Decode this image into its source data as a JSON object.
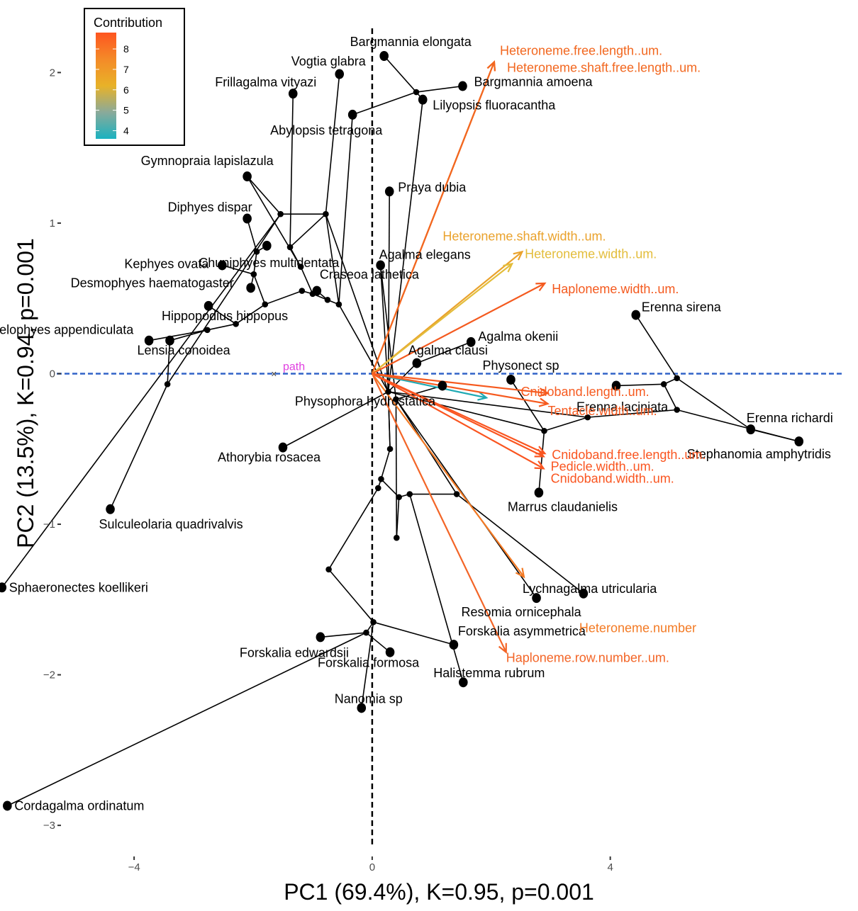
{
  "chart_data": {
    "type": "scatter",
    "subtype": "phylomorphospace biplot",
    "xlabel": "PC1 (69.4%), K=0.95, p=0.001",
    "ylabel": "PC2  (13.5%), K=0.94, p=0.001",
    "xlim": [
      -5.3,
      7.9
    ],
    "ylim": [
      -3.15,
      2.35
    ],
    "xticks": [
      -4,
      0,
      4
    ],
    "yticks": [
      -3,
      -2,
      -1,
      0,
      1,
      2
    ],
    "grid": false,
    "reference_lines": {
      "x": 0,
      "y": 0
    },
    "legend": {
      "title": "Contribution",
      "placement": "top-left",
      "ticks": [
        4,
        5,
        6,
        7,
        8
      ],
      "range": [
        3.6,
        8.8
      ],
      "gradient": [
        "#1ab2c0",
        "#8aaa9a",
        "#e8b228",
        "#f48a28",
        "#fe5520"
      ]
    },
    "baseline": {
      "label": "path",
      "y": 0,
      "color": "#3264c8",
      "label_color": "#e040e0"
    },
    "species": [
      {
        "name": "Bargmannia elongata",
        "x": 0.2,
        "y": 2.11
      },
      {
        "name": "Vogtia glabra",
        "x": -0.55,
        "y": 1.99
      },
      {
        "name": "Frillagalma vityazi",
        "x": -1.33,
        "y": 1.86
      },
      {
        "name": "Bargmannia amoena",
        "x": 1.52,
        "y": 1.91
      },
      {
        "name": "Lilyopsis fluoracantha",
        "x": 0.85,
        "y": 1.82
      },
      {
        "name": "Abylopsis tetragona",
        "x": -0.33,
        "y": 1.72
      },
      {
        "name": "Gymnopraia lapislazula",
        "x": -2.1,
        "y": 1.31
      },
      {
        "name": "Praya dubia",
        "x": 0.29,
        "y": 1.21
      },
      {
        "name": "Diphyes dispar",
        "x": -2.1,
        "y": 1.03
      },
      {
        "name": "Chuniphyes multidentata",
        "x": -1.77,
        "y": 0.85
      },
      {
        "name": "Kephyes ovata",
        "x": -2.52,
        "y": 0.72
      },
      {
        "name": "Agalma elegans",
        "x": 0.14,
        "y": 0.72
      },
      {
        "name": "Desmophyes haematogaster",
        "x": -2.04,
        "y": 0.57
      },
      {
        "name": "Craseoa lathetica",
        "x": -0.93,
        "y": 0.55
      },
      {
        "name": "Erenna sirena",
        "x": 4.43,
        "y": 0.39
      },
      {
        "name": "Hippopodius hippopus",
        "x": -2.75,
        "y": 0.45
      },
      {
        "name": "Agalma okenii",
        "x": 1.66,
        "y": 0.21
      },
      {
        "name": "Chelophyes appendiculata",
        "x": -3.75,
        "y": 0.22
      },
      {
        "name": "Lensia conoidea",
        "x": -3.4,
        "y": 0.22
      },
      {
        "name": "Agalma clausi",
        "x": 0.75,
        "y": 0.07
      },
      {
        "name": "Physonect sp",
        "x": 2.33,
        "y": -0.04
      },
      {
        "name": "Physophora hydrostatica",
        "x": 1.18,
        "y": -0.08
      },
      {
        "name": "Erenna laciniata",
        "x": 4.1,
        "y": -0.08
      },
      {
        "name": "Erenna richardi",
        "x": 6.36,
        "y": -0.37
      },
      {
        "name": "Stephanomia amphytridis",
        "x": 7.17,
        "y": -0.45
      },
      {
        "name": "Athorybia rosacea",
        "x": -1.5,
        "y": -0.49
      },
      {
        "name": "Marrus claudanielis",
        "x": 2.8,
        "y": -0.79
      },
      {
        "name": "Sulculeolaria quadrivalvis",
        "x": -4.4,
        "y": -0.9
      },
      {
        "name": "Sphaeronectes koellikeri",
        "x": -6.22,
        "y": -1.42
      },
      {
        "name": "Lychnagalma utricularia",
        "x": 3.55,
        "y": -1.46
      },
      {
        "name": "Resomia ornicephala",
        "x": 2.76,
        "y": -1.49
      },
      {
        "name": "Forskalia edwardsii",
        "x": -0.87,
        "y": -1.75
      },
      {
        "name": "Forskalia asymmetrica",
        "x": 1.37,
        "y": -1.8
      },
      {
        "name": "Forskalia formosa",
        "x": 0.3,
        "y": -1.85
      },
      {
        "name": "Halistemma rubrum",
        "x": 1.53,
        "y": -2.05
      },
      {
        "name": "Nanomia sp",
        "x": -0.18,
        "y": -2.22
      },
      {
        "name": "Cordagalma ordinatum",
        "x": -6.13,
        "y": -2.87
      }
    ],
    "nodes": [
      {
        "id": "n1",
        "x": -3.44,
        "y": -0.07
      },
      {
        "id": "n2",
        "x": -2.77,
        "y": 0.29
      },
      {
        "id": "n3",
        "x": -2.29,
        "y": 0.33
      },
      {
        "id": "n4",
        "x": -1.8,
        "y": 0.46
      },
      {
        "id": "n5",
        "x": -1.99,
        "y": 0.66
      },
      {
        "id": "n6",
        "x": -1.94,
        "y": 0.81
      },
      {
        "id": "n7",
        "x": -1.38,
        "y": 0.84
      },
      {
        "id": "n8",
        "x": -1.54,
        "y": 1.06
      },
      {
        "id": "n9",
        "x": -1.2,
        "y": 0.71
      },
      {
        "id": "n10",
        "x": -1.18,
        "y": 0.55
      },
      {
        "id": "n11",
        "x": -0.78,
        "y": 1.06
      },
      {
        "id": "n12",
        "x": -1.0,
        "y": 0.53
      },
      {
        "id": "n13",
        "x": -0.75,
        "y": 0.49
      },
      {
        "id": "n14",
        "x": -0.56,
        "y": 0.46
      },
      {
        "id": "n15",
        "x": 0.74,
        "y": 1.87
      },
      {
        "id": "n16",
        "x": 0.27,
        "y": -0.12
      },
      {
        "id": "n17",
        "x": 0.4,
        "y": -0.17
      },
      {
        "id": "n18",
        "x": 5.12,
        "y": -0.03
      },
      {
        "id": "n19",
        "x": 5.12,
        "y": -0.24
      },
      {
        "id": "n20",
        "x": 4.9,
        "y": -0.07
      },
      {
        "id": "n21",
        "x": 3.62,
        "y": -0.29
      },
      {
        "id": "n22",
        "x": 2.89,
        "y": -0.38
      },
      {
        "id": "n23",
        "x": 0.3,
        "y": -0.5
      },
      {
        "id": "n24",
        "x": 0.15,
        "y": -0.7
      },
      {
        "id": "n25",
        "x": 0.1,
        "y": -0.76
      },
      {
        "id": "n26",
        "x": 0.45,
        "y": -0.82
      },
      {
        "id": "n27",
        "x": 0.63,
        "y": -0.8
      },
      {
        "id": "n28",
        "x": 1.42,
        "y": -0.8
      },
      {
        "id": "n29",
        "x": 0.41,
        "y": -1.09
      },
      {
        "id": "n30",
        "x": -0.73,
        "y": -1.3
      },
      {
        "id": "n31",
        "x": 0.02,
        "y": -1.65
      },
      {
        "id": "n32",
        "x": -0.1,
        "y": -1.72
      }
    ],
    "edges": [
      [
        "Cordagalma ordinatum",
        "n32"
      ],
      [
        "Nanomia sp",
        "n31"
      ],
      [
        "n32",
        "Forskalia edwardsii"
      ],
      [
        "n32",
        "Forskalia formosa"
      ],
      [
        "n31",
        "n32"
      ],
      [
        "n31",
        "Forskalia asymmetrica"
      ],
      [
        "n31",
        "n30"
      ],
      [
        "n30",
        "n25"
      ],
      [
        "n25",
        "n24"
      ],
      [
        "n24",
        "n23"
      ],
      [
        "n23",
        "n16"
      ],
      [
        "n24",
        "n26"
      ],
      [
        "n26",
        "n27"
      ],
      [
        "n27",
        "n28"
      ],
      [
        "n28",
        "Lychnagalma utricularia"
      ],
      [
        "n27",
        "Halistemma rubrum"
      ],
      [
        "n26",
        "n29"
      ],
      [
        "n29",
        "n17"
      ],
      [
        "n28",
        "n17"
      ],
      [
        "n17",
        "Resomia ornicephala"
      ],
      [
        "n17",
        "Physophora hydrostatica"
      ],
      [
        "n16",
        "Athorybia rosacea"
      ],
      [
        "n16",
        "Agalma clausi"
      ],
      [
        "Agalma clausi",
        "Agalma okenii"
      ],
      [
        "n16",
        "Agalma elegans"
      ],
      [
        "n16",
        "n22"
      ],
      [
        "n22",
        "Physonect sp"
      ],
      [
        "n22",
        "Marrus claudanielis"
      ],
      [
        "n22",
        "n21"
      ],
      [
        "n21",
        "n19"
      ],
      [
        "n19",
        "n20"
      ],
      [
        "n20",
        "Erenna laciniata"
      ],
      [
        "n20",
        "n18"
      ],
      [
        "n18",
        "Erenna sirena"
      ],
      [
        "n18",
        "Erenna richardi"
      ],
      [
        "n19",
        "Stephanomia amphytridis"
      ],
      [
        "n16",
        "n21"
      ],
      [
        "Erenna richardi",
        "Stephanomia amphytridis"
      ],
      [
        "n16",
        "Praya dubia"
      ],
      [
        "n16",
        "Lilyopsis fluoracantha"
      ],
      [
        "Agalma elegans",
        "n17"
      ],
      [
        "Lilyopsis fluoracantha",
        "n15"
      ],
      [
        "n15",
        "Bargmannia elongata"
      ],
      [
        "n15",
        "Bargmannia amoena"
      ],
      [
        "n14",
        "Abylopsis tetragona"
      ],
      [
        "n14",
        "n13"
      ],
      [
        "n13",
        "Craseoa lathetica"
      ],
      [
        "n13",
        "n12"
      ],
      [
        "n12",
        "n10"
      ],
      [
        "n12",
        "n9"
      ],
      [
        "n9",
        "n7"
      ],
      [
        "n7",
        "n11"
      ],
      [
        "n11",
        "Vogtia glabra"
      ],
      [
        "n7",
        "Frillagalma vityazi"
      ],
      [
        "n9",
        "Gymnopraia lapislazula"
      ],
      [
        "n10",
        "n4"
      ],
      [
        "n4",
        "n5"
      ],
      [
        "n5",
        "n6"
      ],
      [
        "n6",
        "Diphyes dispar"
      ],
      [
        "n6",
        "Chuniphyes multidentata"
      ],
      [
        "n5",
        "Kephyes ovata"
      ],
      [
        "n5",
        "Desmophyes haematogaster"
      ],
      [
        "n4",
        "n3"
      ],
      [
        "n3",
        "Hippopodius hippopus"
      ],
      [
        "n3",
        "n2"
      ],
      [
        "n2",
        "Chelophyes appendiculata"
      ],
      [
        "n2",
        "Lensia conoidea"
      ],
      [
        "Lensia conoidea",
        "n1"
      ],
      [
        "n1",
        "Sulculeolaria quadrivalvis"
      ],
      [
        "n1",
        "n8"
      ],
      [
        "n8",
        "Gymnopraia lapislazula"
      ],
      [
        "n8",
        "Sphaeronectes koellikeri"
      ],
      [
        "n11",
        "n14"
      ],
      [
        "n11",
        "n16"
      ],
      [
        "n14",
        "n16"
      ],
      [
        "n16",
        "n23"
      ],
      [
        "n8",
        "n11"
      ],
      [
        "n15",
        "Abylopsis tetragona"
      ]
    ],
    "variables": [
      {
        "name": "Heteroneme.free.length..um.",
        "x": 2.05,
        "y": 2.07,
        "contribution": 8.0
      },
      {
        "name": "Heteroneme.shaft.free.length..um.",
        "x": 2.05,
        "y": 2.07,
        "contribution": 8.0
      },
      {
        "name": "Heteroneme.shaft.width..um.",
        "x": 2.52,
        "y": 0.81,
        "contribution": 6.7
      },
      {
        "name": "Heteroneme.width..um.",
        "x": 2.35,
        "y": 0.73,
        "contribution": 6.1
      },
      {
        "name": "Haploneme.width..um.",
        "x": 2.9,
        "y": 0.6,
        "contribution": 7.8
      },
      {
        "name": "",
        "x": 1.92,
        "y": -0.16,
        "contribution": 3.9
      },
      {
        "name": "Cnidoband.length..um.",
        "x": 2.95,
        "y": -0.13,
        "contribution": 8.0
      },
      {
        "name": "Tentacle.width..um.",
        "x": 2.95,
        "y": -0.2,
        "contribution": 8.0
      },
      {
        "name": "Cnidoband.free.length..um.",
        "x": 2.9,
        "y": -0.53,
        "contribution": 8.1
      },
      {
        "name": "Pedicle.width..um.",
        "x": 2.88,
        "y": -0.55,
        "contribution": 8.1
      },
      {
        "name": "Cnidoband.width..um.",
        "x": 2.88,
        "y": -0.63,
        "contribution": 8.1
      },
      {
        "name": "Heteroneme.number",
        "x": 2.55,
        "y": -1.35,
        "contribution": 7.3
      },
      {
        "name": "Haploneme.row.number..um.",
        "x": 2.25,
        "y": -1.85,
        "contribution": 7.6
      }
    ],
    "colors": {
      "variables": [
        "#f2671f",
        "#f2671f",
        "#eaa22c",
        "#e3bd3b",
        "#f45a1f",
        "#20aab4",
        "#f65a1f",
        "#f65a1f",
        "#fa5520",
        "#fa5520",
        "#fa5520",
        "#f37a24",
        "#f36527"
      ]
    }
  }
}
